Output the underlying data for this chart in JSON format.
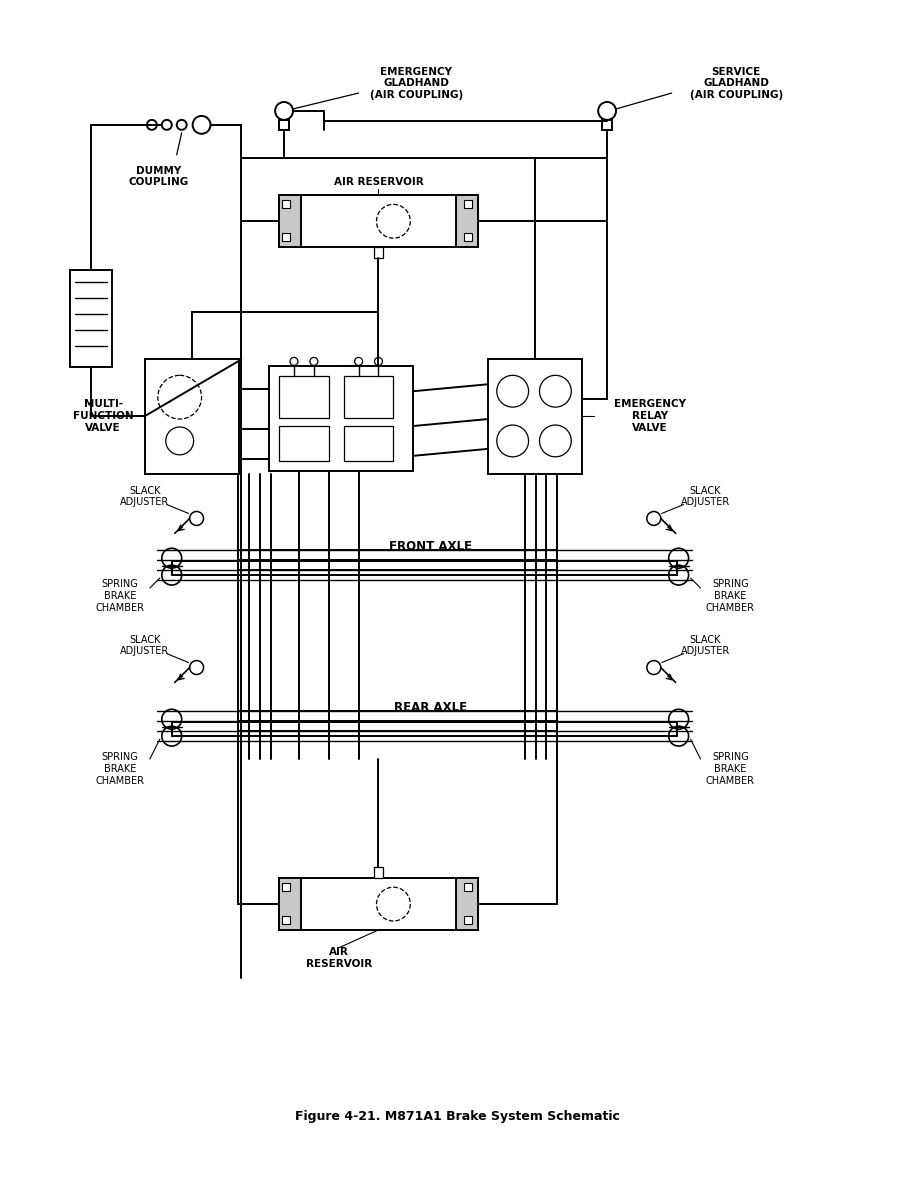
{
  "title": "Figure 4-21. M871A1 Brake System Schematic",
  "bg": "#ffffff",
  "lc": "#000000",
  "labels": {
    "emergency_gladhand": "EMERGENCY\nGLADHAND\n(AIR COUPLING)",
    "service_gladhand": "SERVICE\nGLADHAND\n(AIR COUPLING)",
    "dummy_coupling": "DUMMY\nCOUPLING",
    "air_reservoir_top": "AIR RESERVOIR",
    "air_reservoir_bottom": "AIR\nRESERVOIR",
    "multi_function_valve": "MULTI-\nFUNCTION\nVALVE",
    "emergency_relay_valve": "EMERGENCY\nRELAY\nVALVE",
    "slack_adjuster": "SLACK\nADJUSTER",
    "spring_brake_chamber": "SPRING\nBRAKE\nCHAMBER",
    "front_axle": "FRONT AXLE",
    "rear_axle": "REAR AXLE"
  }
}
